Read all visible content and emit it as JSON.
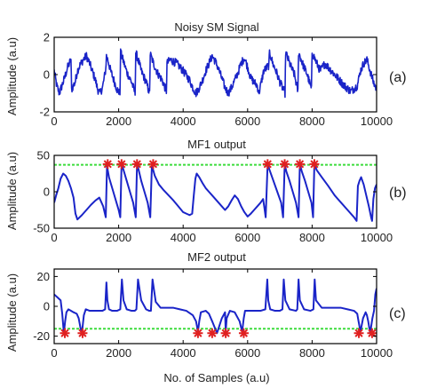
{
  "colors": {
    "signal": "#1a24c8",
    "threshold": "#3ddc3d",
    "marker": "#e02020",
    "axis": "#000000"
  },
  "chart_data": [
    {
      "id": "a",
      "type": "line",
      "title": "Noisy SM Signal",
      "xlabel": "",
      "ylabel": "Amplitude (a.u)",
      "panel_label": "(a)",
      "xlim": [
        0,
        10000
      ],
      "ylim": [
        -2,
        2
      ],
      "xticks": [
        0,
        2000,
        4000,
        6000,
        8000,
        10000
      ],
      "yticks": [
        -2,
        0,
        2
      ],
      "noise": 0.22,
      "series": [
        {
          "x": [
            0,
            80,
            160,
            300,
            420,
            520,
            540,
            650,
            720,
            800,
            900,
            1000,
            1100,
            1200,
            1280,
            1350,
            1420,
            1500,
            1600,
            1620,
            1680,
            1750,
            1850,
            1950,
            2040,
            2060,
            2150,
            2260,
            2400,
            2510,
            2530,
            2620,
            2700,
            2850,
            2960,
            2980,
            3080,
            3200,
            3350,
            3480,
            3500,
            3600,
            3800,
            4000,
            4200,
            4300,
            4400,
            4500,
            4600,
            4700,
            4800,
            4900,
            5000,
            5100,
            5200,
            5300,
            5400,
            5500,
            5600,
            5700,
            5800,
            5900,
            6000,
            6100,
            6300,
            6350,
            6500,
            6660,
            6680,
            6780,
            6900,
            7000,
            7160,
            7180,
            7300,
            7450,
            7560,
            7580,
            7700,
            7850,
            7980,
            8000,
            8120,
            8250,
            8400,
            8600,
            8800,
            9000,
            9200,
            9400,
            9500,
            9600,
            9700,
            9800,
            9900,
            10000
          ],
          "y": [
            0.2,
            -0.6,
            -1.0,
            -0.3,
            0.4,
            0.8,
            -0.8,
            -0.4,
            0.2,
            0.5,
            0.8,
            1.0,
            0.6,
            0.1,
            -0.3,
            -0.8,
            -1.0,
            -0.7,
            0.3,
            1.0,
            0.7,
            0.2,
            -0.3,
            -0.8,
            -1.0,
            1.2,
            0.7,
            0.1,
            -0.4,
            -1.0,
            1.2,
            0.7,
            0.2,
            -0.4,
            -1.0,
            1.1,
            0.6,
            0.1,
            -0.3,
            -0.9,
            0.6,
            0.8,
            0.6,
            0.2,
            -0.3,
            -0.7,
            -1.0,
            -0.7,
            -0.3,
            0.2,
            0.6,
            1.0,
            0.7,
            0.3,
            -0.2,
            -0.7,
            -1.0,
            -0.7,
            -0.3,
            0.1,
            0.6,
            0.9,
            0.4,
            -0.2,
            -0.6,
            -1.0,
            0.2,
            0.5,
            1.2,
            0.6,
            0.1,
            -0.4,
            -1.0,
            1.2,
            0.6,
            0.0,
            -0.9,
            1.2,
            0.6,
            0.0,
            -0.8,
            1.2,
            0.7,
            0.2,
            0.6,
            0.2,
            -0.2,
            -0.6,
            -0.9,
            -0.6,
            0.2,
            0.6,
            0.8,
            0.2,
            -0.4,
            -0.8
          ]
        }
      ]
    },
    {
      "id": "b",
      "type": "line",
      "title": "MF1 output",
      "xlabel": "",
      "ylabel": "Amplitude (a.u)",
      "panel_label": "(b)",
      "xlim": [
        0,
        10000
      ],
      "ylim": [
        -50,
        50
      ],
      "xticks": [
        0,
        2000,
        4000,
        6000,
        8000,
        10000
      ],
      "yticks": [
        -50,
        0,
        50
      ],
      "threshold": 37,
      "series": [
        {
          "x": [
            0,
            60,
            130,
            200,
            280,
            360,
            440,
            520,
            600,
            660,
            720,
            860,
            1000,
            1140,
            1280,
            1400,
            1520,
            1600,
            1640,
            1660,
            1700,
            1800,
            1900,
            2000,
            2050,
            2090,
            2150,
            2250,
            2350,
            2450,
            2530,
            2570,
            2620,
            2700,
            2800,
            2900,
            2980,
            3030,
            3070,
            3120,
            3250,
            3400,
            3550,
            3700,
            3850,
            4000,
            4100,
            4200,
            4280,
            4330,
            4380,
            4420,
            4500,
            4600,
            4700,
            4800,
            4900,
            5000,
            5100,
            5200,
            5300,
            5400,
            5500,
            5600,
            5700,
            5800,
            5900,
            6000,
            6100,
            6200,
            6300,
            6400,
            6480,
            6520,
            6560,
            6620,
            6680,
            6800,
            6920,
            7040,
            7100,
            7150,
            7200,
            7300,
            7400,
            7500,
            7580,
            7620,
            7680,
            7780,
            7880,
            7980,
            8030,
            8070,
            8140,
            8300,
            8500,
            8700,
            8900,
            9100,
            9300,
            9380,
            9420,
            9470,
            9520,
            9600,
            9680,
            9760,
            9830,
            9860,
            9900,
            9950,
            10000
          ],
          "y": [
            -15,
            -5,
            5,
            18,
            25,
            22,
            15,
            5,
            -8,
            -30,
            -38,
            -32,
            -25,
            -18,
            -12,
            -8,
            -20,
            -35,
            38,
            30,
            20,
            5,
            -10,
            -25,
            -35,
            38,
            30,
            15,
            0,
            -15,
            -35,
            38,
            30,
            15,
            0,
            -15,
            -35,
            36,
            30,
            22,
            10,
            2,
            -5,
            -12,
            -20,
            -28,
            -30,
            -32,
            -30,
            -5,
            18,
            25,
            20,
            12,
            5,
            0,
            -5,
            -10,
            -15,
            -20,
            -25,
            -20,
            -12,
            -5,
            -10,
            -20,
            -28,
            -34,
            -30,
            -25,
            -20,
            -15,
            -10,
            -22,
            -35,
            38,
            30,
            15,
            0,
            -15,
            -35,
            38,
            28,
            15,
            0,
            -15,
            -35,
            38,
            28,
            15,
            0,
            -15,
            -35,
            38,
            30,
            20,
            8,
            -5,
            -15,
            -25,
            -35,
            -40,
            8,
            15,
            20,
            10,
            -5,
            -20,
            -35,
            -40,
            -10,
            5,
            10
          ]
        }
      ],
      "markers": {
        "x": [
          1660,
          2090,
          2570,
          3070,
          6620,
          7150,
          7620,
          8070
        ],
        "y": [
          38,
          38,
          38,
          38,
          38,
          38,
          38,
          38
        ]
      }
    },
    {
      "id": "c",
      "type": "line",
      "title": "MF2 output",
      "xlabel": "No. of Samples (a.u)",
      "ylabel": "Amplitude (a.u)",
      "panel_label": "(c)",
      "xlim": [
        0,
        10000
      ],
      "ylim": [
        -25,
        25
      ],
      "xticks": [
        0,
        2000,
        4000,
        6000,
        8000,
        10000
      ],
      "yticks": [
        -20,
        0,
        20
      ],
      "threshold": -15,
      "series": [
        {
          "x": [
            0,
            100,
            200,
            250,
            300,
            340,
            380,
            440,
            520,
            600,
            700,
            760,
            820,
            860,
            880,
            920,
            980,
            1100,
            1300,
            1500,
            1580,
            1620,
            1650,
            1700,
            1800,
            1950,
            2050,
            2100,
            2150,
            2250,
            2400,
            2500,
            2550,
            2600,
            2700,
            2850,
            2950,
            3000,
            3050,
            3150,
            3300,
            3500,
            3700,
            3900,
            4100,
            4300,
            4400,
            4460,
            4500,
            4550,
            4700,
            4800,
            4900,
            5050,
            5200,
            5300,
            5320,
            5350,
            5450,
            5600,
            5750,
            5830,
            5880,
            5920,
            6050,
            6200,
            6400,
            6550,
            6610,
            6640,
            6700,
            6850,
            7000,
            7080,
            7120,
            7170,
            7300,
            7500,
            7540,
            7580,
            7620,
            7750,
            7950,
            8040,
            8080,
            8120,
            8300,
            8500,
            8700,
            8900,
            9100,
            9300,
            9400,
            9440,
            9500,
            9580,
            9660,
            9700,
            9740,
            9800,
            9870,
            9920,
            9960,
            10000
          ],
          "y": [
            8,
            6,
            4,
            -5,
            -18,
            -10,
            -4,
            -2,
            -3,
            -4,
            -5,
            -8,
            -15,
            -18,
            -14,
            -6,
            -2,
            -3,
            -3,
            -3,
            -2,
            16,
            4,
            -2,
            -3,
            -3,
            -2,
            18,
            4,
            -2,
            -3,
            -3,
            -2,
            18,
            4,
            -2,
            -3,
            -3,
            18,
            3,
            -1,
            -1,
            -1,
            -2,
            -3,
            -6,
            -10,
            -17,
            -10,
            -4,
            -3,
            -5,
            -10,
            -18,
            -8,
            -4,
            -17,
            -8,
            -3,
            -4,
            -10,
            -17,
            -8,
            -3,
            -3,
            -3,
            -3,
            -2,
            18,
            4,
            -2,
            -3,
            -3,
            -2,
            18,
            4,
            -2,
            -3,
            -2,
            18,
            4,
            -2,
            -3,
            -2,
            18,
            4,
            -1,
            -1,
            -1,
            -1,
            -2,
            -3,
            -5,
            -10,
            -17,
            -8,
            -4,
            -6,
            -10,
            -18,
            -8,
            -3,
            8,
            12
          ]
        }
      ],
      "markers": {
        "x": [
          330,
          880,
          4460,
          4900,
          5320,
          5880,
          9450,
          9860
        ],
        "y": [
          -18,
          -18,
          -18,
          -18,
          -18,
          -18,
          -18,
          -18
        ]
      }
    }
  ]
}
